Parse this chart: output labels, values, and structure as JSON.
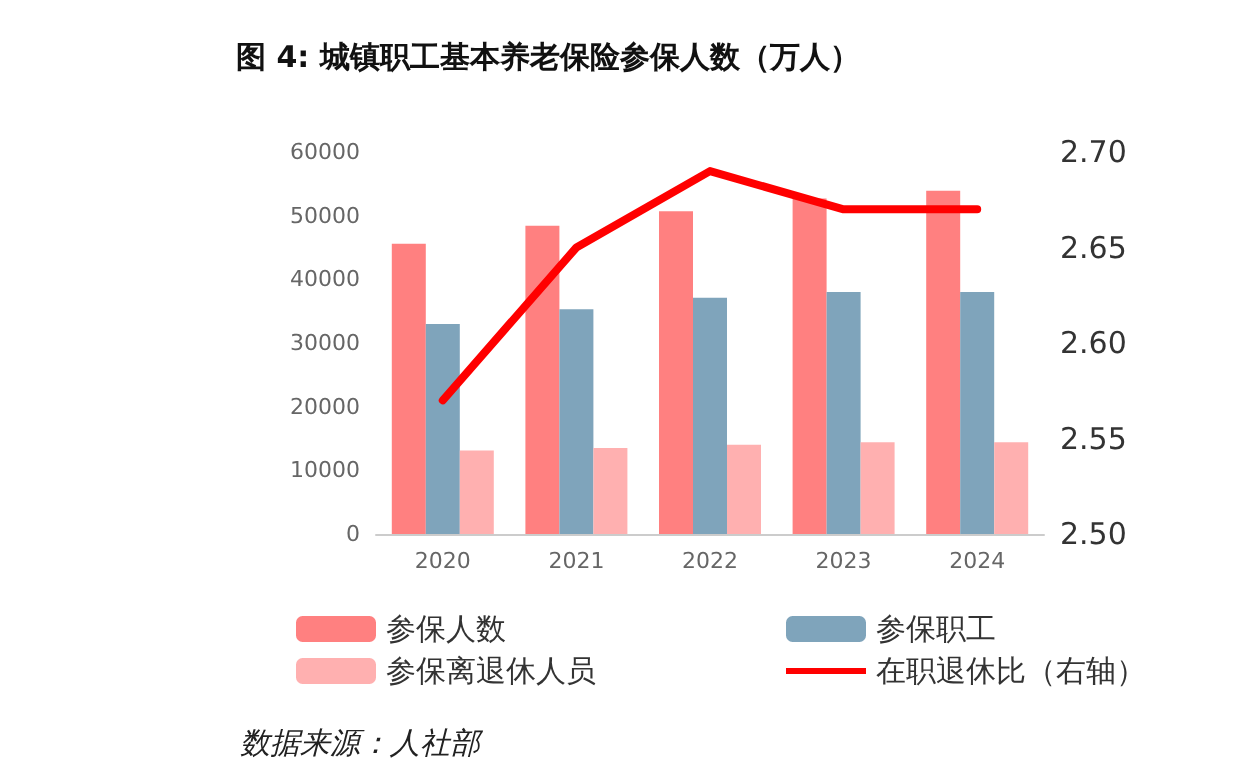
{
  "chart_data": {
    "type": "bar",
    "title": "图 4: 城镇职工基本养老保险参保人数（万人）",
    "categories": [
      "2020",
      "2021",
      "2022",
      "2023",
      "2024"
    ],
    "series": [
      {
        "name": "参保人数",
        "color": "#ff8080",
        "values": [
          45600,
          48400,
          50700,
          52700,
          53900
        ]
      },
      {
        "name": "参保职工",
        "color": "#7fa4bb",
        "values": [
          33000,
          35300,
          37100,
          38000,
          38000
        ]
      },
      {
        "name": "参保离退休人员",
        "color": "#ffb0b0",
        "values": [
          13100,
          13500,
          14000,
          14400,
          14400
        ]
      },
      {
        "name": "在职退休比（右轴）",
        "type": "line",
        "axis": "y2",
        "color": "#ff0000",
        "values": [
          2.57,
          2.65,
          2.69,
          2.67,
          2.67
        ]
      }
    ],
    "ylim": [
      0,
      60000
    ],
    "yticks": [
      0,
      10000,
      20000,
      30000,
      40000,
      50000,
      60000
    ],
    "y2lim": [
      2.5,
      2.7
    ],
    "y2ticks": [
      {
        "value": 2.5,
        "label": "2.50"
      },
      2.55,
      {
        "value": 2.6,
        "label": "2.60"
      },
      2.65,
      {
        "value": 2.7,
        "label": "2.70"
      }
    ],
    "grid": false,
    "legend": "bottom",
    "marker": "none",
    "line_style": "solid",
    "annotations": [
      "数据来源：人社部"
    ]
  }
}
